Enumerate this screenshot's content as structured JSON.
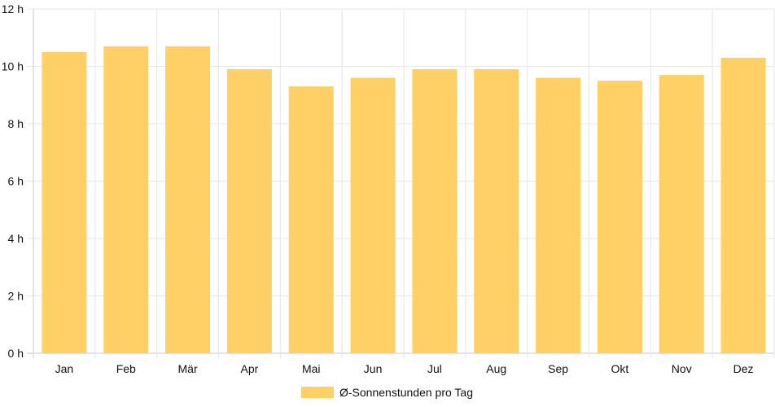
{
  "chart_data": {
    "type": "bar",
    "categories": [
      "Jan",
      "Feb",
      "Mär",
      "Apr",
      "Mai",
      "Jun",
      "Jul",
      "Aug",
      "Sep",
      "Okt",
      "Nov",
      "Dez"
    ],
    "series": [
      {
        "name": "Ø-Sonnenstunden pro Tag",
        "values": [
          10.5,
          10.7,
          10.7,
          9.9,
          9.3,
          9.6,
          9.9,
          9.9,
          9.6,
          9.5,
          9.7,
          10.3
        ],
        "color": "#fed066"
      }
    ],
    "y_ticks": [
      "0 h",
      "2 h",
      "4 h",
      "6 h",
      "8 h",
      "10 h",
      "12 h"
    ],
    "ylim": [
      0,
      12
    ],
    "grid": true,
    "legend_position": "bottom"
  }
}
